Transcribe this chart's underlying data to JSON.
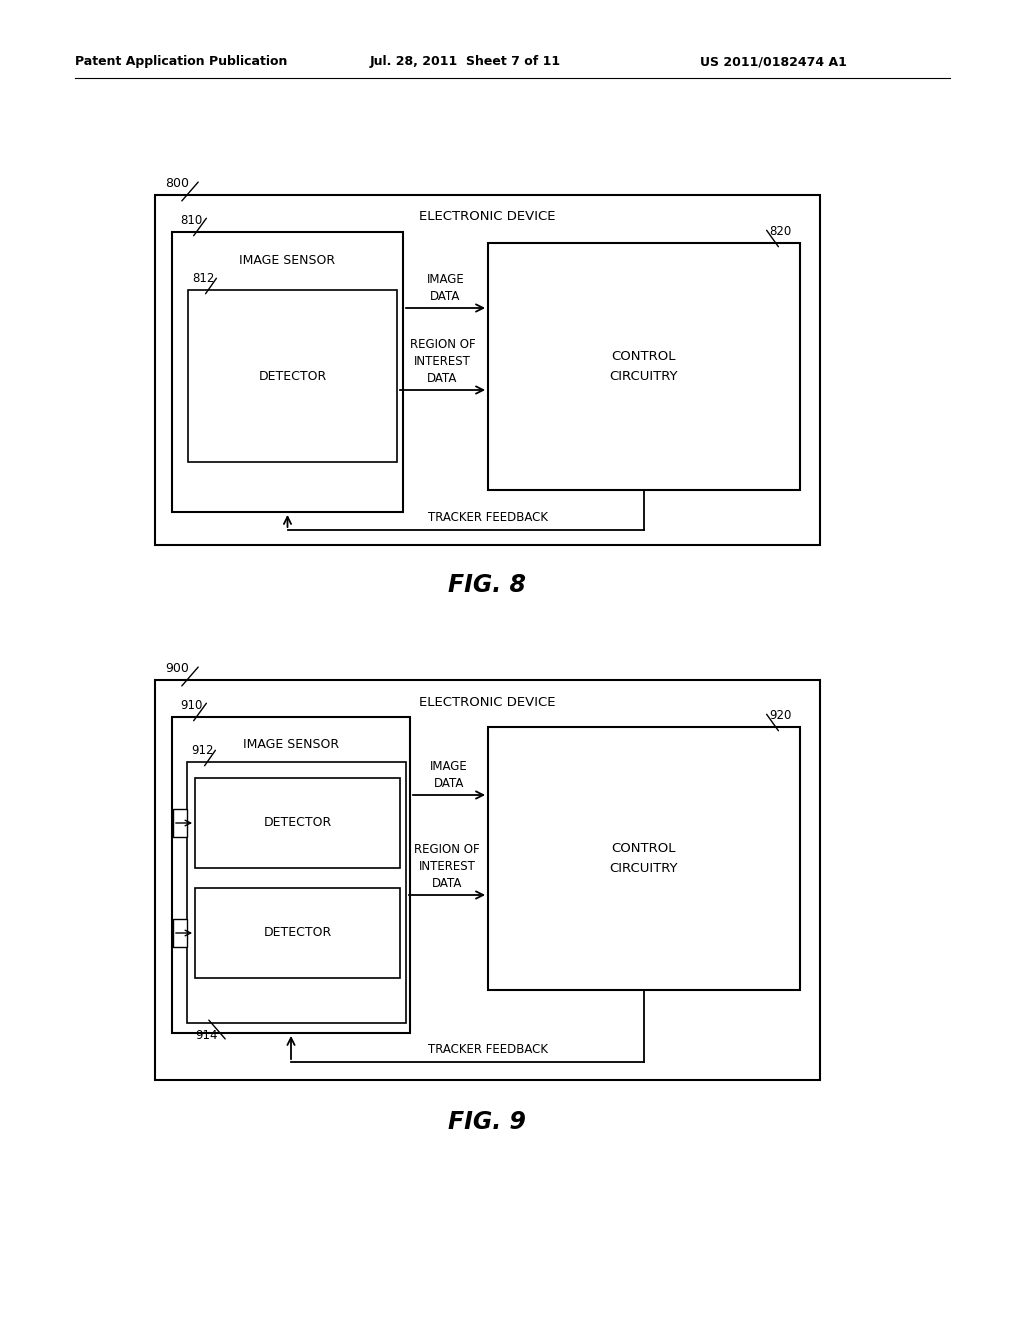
{
  "header_left": "Patent Application Publication",
  "header_mid": "Jul. 28, 2011  Sheet 7 of 11",
  "header_right": "US 2011/0182474 A1",
  "bg_color": "#ffffff",
  "fig8_label": "FIG. 8",
  "fig9_label": "FIG. 9"
}
